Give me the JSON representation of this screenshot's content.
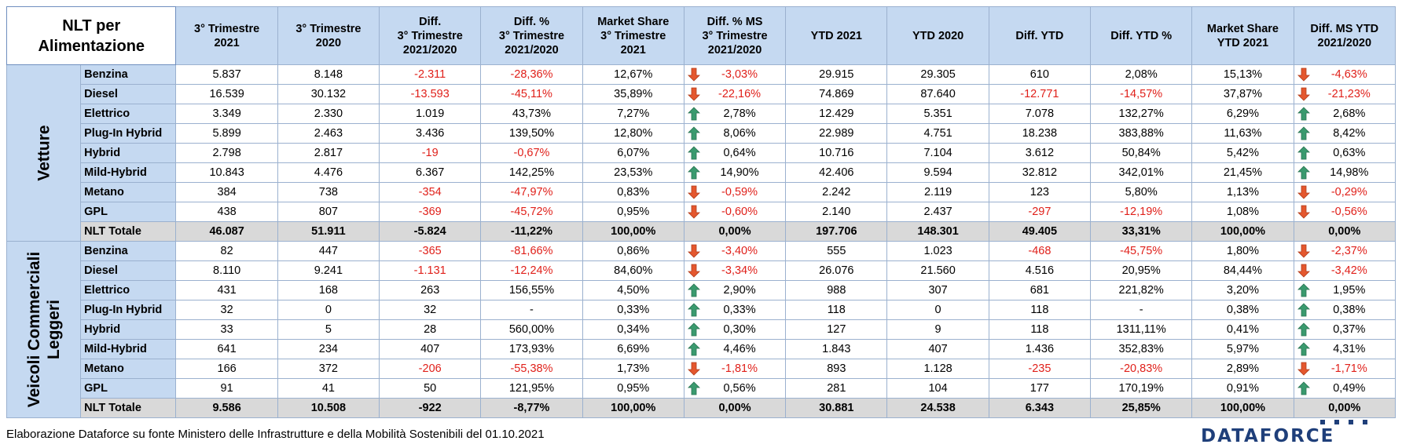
{
  "header": {
    "title_line1": "NLT per",
    "title_line2": "Alimentazione",
    "columns": [
      [
        "3° Trimestre",
        "2021"
      ],
      [
        "3° Trimestre",
        "2020"
      ],
      [
        "Diff.",
        "3° Trimestre",
        "2021/2020"
      ],
      [
        "Diff. %",
        "3° Trimestre",
        "2021/2020"
      ],
      [
        "Market Share",
        "3° Trimestre",
        "2021"
      ],
      [
        "Diff. % MS",
        "3° Trimestre",
        "2021/2020"
      ],
      [
        "YTD 2021"
      ],
      [
        "YTD 2020"
      ],
      [
        "Diff. YTD"
      ],
      [
        "Diff. YTD %"
      ],
      [
        "Market Share",
        "YTD 2021"
      ],
      [
        "Diff. MS YTD",
        "2021/2020"
      ]
    ]
  },
  "groups": [
    {
      "label_lines": [
        "Vetture"
      ],
      "rows": [
        {
          "name": "Benzina",
          "cells": [
            "5.837",
            "8.148",
            "-2.311",
            "-28,36%",
            "12,67%",
            "-3,03%",
            "29.915",
            "29.305",
            "610",
            "2,08%",
            "15,13%",
            "-4,63%"
          ],
          "arrow_q": "down",
          "arrow_ytd": "down"
        },
        {
          "name": "Diesel",
          "cells": [
            "16.539",
            "30.132",
            "-13.593",
            "-45,11%",
            "35,89%",
            "-22,16%",
            "74.869",
            "87.640",
            "-12.771",
            "-14,57%",
            "37,87%",
            "-21,23%"
          ],
          "arrow_q": "down",
          "arrow_ytd": "down"
        },
        {
          "name": "Elettrico",
          "cells": [
            "3.349",
            "2.330",
            "1.019",
            "43,73%",
            "7,27%",
            "2,78%",
            "12.429",
            "5.351",
            "7.078",
            "132,27%",
            "6,29%",
            "2,68%"
          ],
          "arrow_q": "up",
          "arrow_ytd": "up"
        },
        {
          "name": "Plug-In Hybrid",
          "cells": [
            "5.899",
            "2.463",
            "3.436",
            "139,50%",
            "12,80%",
            "8,06%",
            "22.989",
            "4.751",
            "18.238",
            "383,88%",
            "11,63%",
            "8,42%"
          ],
          "arrow_q": "up",
          "arrow_ytd": "up"
        },
        {
          "name": "Hybrid",
          "cells": [
            "2.798",
            "2.817",
            "-19",
            "-0,67%",
            "6,07%",
            "0,64%",
            "10.716",
            "7.104",
            "3.612",
            "50,84%",
            "5,42%",
            "0,63%"
          ],
          "arrow_q": "up",
          "arrow_ytd": "up"
        },
        {
          "name": "Mild-Hybrid",
          "cells": [
            "10.843",
            "4.476",
            "6.367",
            "142,25%",
            "23,53%",
            "14,90%",
            "42.406",
            "9.594",
            "32.812",
            "342,01%",
            "21,45%",
            "14,98%"
          ],
          "arrow_q": "up",
          "arrow_ytd": "up"
        },
        {
          "name": "Metano",
          "cells": [
            "384",
            "738",
            "-354",
            "-47,97%",
            "0,83%",
            "-0,59%",
            "2.242",
            "2.119",
            "123",
            "5,80%",
            "1,13%",
            "-0,29%"
          ],
          "arrow_q": "down",
          "arrow_ytd": "down"
        },
        {
          "name": "GPL",
          "cells": [
            "438",
            "807",
            "-369",
            "-45,72%",
            "0,95%",
            "-0,60%",
            "2.140",
            "2.437",
            "-297",
            "-12,19%",
            "1,08%",
            "-0,56%"
          ],
          "arrow_q": "down",
          "arrow_ytd": "down"
        }
      ],
      "total": {
        "name": "NLT Totale",
        "cells": [
          "46.087",
          "51.911",
          "-5.824",
          "-11,22%",
          "100,00%",
          "0,00%",
          "197.706",
          "148.301",
          "49.405",
          "33,31%",
          "100,00%",
          "0,00%"
        ]
      }
    },
    {
      "label_lines": [
        "Veicoli Commerciali",
        "Leggeri"
      ],
      "rows": [
        {
          "name": "Benzina",
          "cells": [
            "82",
            "447",
            "-365",
            "-81,66%",
            "0,86%",
            "-3,40%",
            "555",
            "1.023",
            "-468",
            "-45,75%",
            "1,80%",
            "-2,37%"
          ],
          "arrow_q": "down",
          "arrow_ytd": "down"
        },
        {
          "name": "Diesel",
          "cells": [
            "8.110",
            "9.241",
            "-1.131",
            "-12,24%",
            "84,60%",
            "-3,34%",
            "26.076",
            "21.560",
            "4.516",
            "20,95%",
            "84,44%",
            "-3,42%"
          ],
          "arrow_q": "down",
          "arrow_ytd": "down"
        },
        {
          "name": "Elettrico",
          "cells": [
            "431",
            "168",
            "263",
            "156,55%",
            "4,50%",
            "2,90%",
            "988",
            "307",
            "681",
            "221,82%",
            "3,20%",
            "1,95%"
          ],
          "arrow_q": "up",
          "arrow_ytd": "up"
        },
        {
          "name": "Plug-In Hybrid",
          "cells": [
            "32",
            "0",
            "32",
            "-",
            "0,33%",
            "0,33%",
            "118",
            "0",
            "118",
            "-",
            "0,38%",
            "0,38%"
          ],
          "arrow_q": "up",
          "arrow_ytd": "up"
        },
        {
          "name": "Hybrid",
          "cells": [
            "33",
            "5",
            "28",
            "560,00%",
            "0,34%",
            "0,30%",
            "127",
            "9",
            "118",
            "1311,11%",
            "0,41%",
            "0,37%"
          ],
          "arrow_q": "up",
          "arrow_ytd": "up"
        },
        {
          "name": "Mild-Hybrid",
          "cells": [
            "641",
            "234",
            "407",
            "173,93%",
            "6,69%",
            "4,46%",
            "1.843",
            "407",
            "1.436",
            "352,83%",
            "5,97%",
            "4,31%"
          ],
          "arrow_q": "up",
          "arrow_ytd": "up"
        },
        {
          "name": "Metano",
          "cells": [
            "166",
            "372",
            "-206",
            "-55,38%",
            "1,73%",
            "-1,81%",
            "893",
            "1.128",
            "-235",
            "-20,83%",
            "2,89%",
            "-1,71%"
          ],
          "arrow_q": "down",
          "arrow_ytd": "down"
        },
        {
          "name": "GPL",
          "cells": [
            "91",
            "41",
            "50",
            "121,95%",
            "0,95%",
            "0,56%",
            "281",
            "104",
            "177",
            "170,19%",
            "0,91%",
            "0,49%"
          ],
          "arrow_q": "up",
          "arrow_ytd": "up"
        }
      ],
      "total": {
        "name": "NLT Totale",
        "cells": [
          "9.586",
          "10.508",
          "-922",
          "-8,77%",
          "100,00%",
          "0,00%",
          "30.881",
          "24.538",
          "6.343",
          "25,85%",
          "100,00%",
          "0,00%"
        ]
      }
    }
  ],
  "footer": {
    "source": "Elaborazione Dataforce su fonte Ministero delle Infrastrutture e della Mobilità Sostenibili del 01.10.2021"
  },
  "logo": {
    "text": "DATAFORCE"
  },
  "colors": {
    "header_bg": "#c5d9f1",
    "total_bg": "#d9d9d9",
    "negative": "#e0201a",
    "arrow_up": "#3a9a6e",
    "arrow_down": "#e4572e",
    "logo": "#1f3f7a"
  }
}
